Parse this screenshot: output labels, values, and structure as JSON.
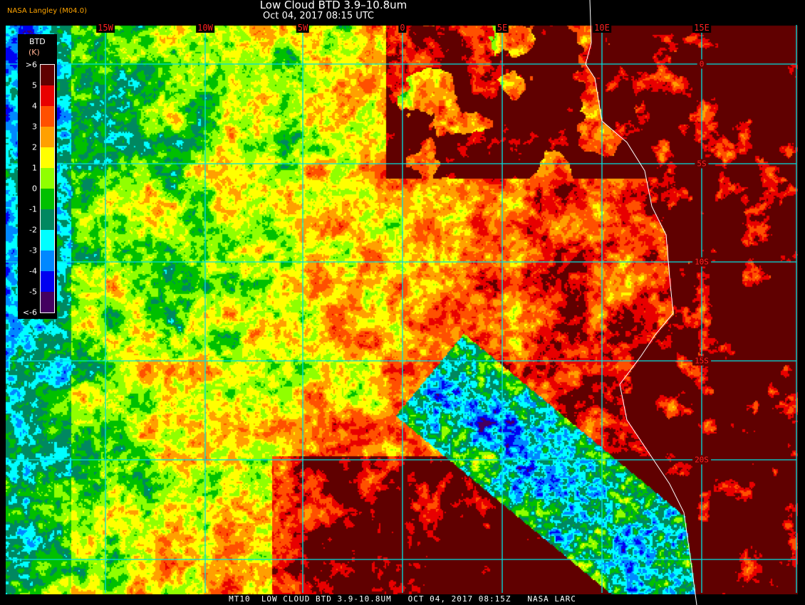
{
  "header": {
    "credit": "NASA Langley (M04.0)",
    "title": "Low Cloud BTD 3.9–10.8um",
    "datetime": "Oct 04, 2017 08:15 UTC"
  },
  "map": {
    "longitude_labels": [
      "15W",
      "10W",
      "5W",
      "0",
      "5E",
      "10E",
      "15E"
    ],
    "latitude_labels": [
      "0",
      "5S",
      "10S",
      "15S",
      "20S"
    ],
    "grid_color": "#00e0e0",
    "label_color": "#ff2020",
    "coastline_color": "#ffffff"
  },
  "legend": {
    "title": "BTD",
    "unit": "(K)",
    "labels": [
      ">6",
      "5",
      "4",
      "3",
      "2",
      "1",
      "0",
      "-1",
      "-2",
      "-3",
      "-4",
      "-5",
      "<-6"
    ],
    "colors": [
      "#600000",
      "#e80000",
      "#ff5000",
      "#ffa000",
      "#ffff00",
      "#90ff00",
      "#00c000",
      "#008860",
      "#00ffff",
      "#0088ff",
      "#0000f0",
      "#440060"
    ]
  },
  "footer": {
    "caption": "MT10  LOW CLOUD BTD 3.9-10.8UM   OCT 04, 2017 08:15Z   NASA LARC"
  }
}
